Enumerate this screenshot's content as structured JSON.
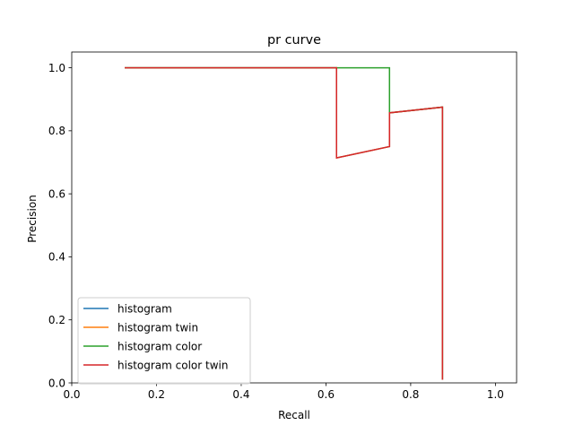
{
  "chart_data": {
    "type": "line",
    "title": "pr curve",
    "xlabel": "Recall",
    "ylabel": "Precision",
    "xlim": [
      0.0,
      1.05
    ],
    "ylim": [
      0.0,
      1.05
    ],
    "x_ticks": [
      "0.0",
      "0.2",
      "0.4",
      "0.6",
      "0.8",
      "1.0"
    ],
    "y_ticks": [
      "0.0",
      "0.2",
      "0.4",
      "0.6",
      "0.8",
      "1.0"
    ],
    "grid": false,
    "legend_position": "lower-left",
    "series": [
      {
        "name": "histogram",
        "color": "#1f77b4",
        "x": [
          0.125,
          0.625,
          0.625,
          0.75,
          0.75,
          0.875,
          0.875
        ],
        "y": [
          1.0,
          1.0,
          0.714,
          0.75,
          0.857,
          0.875,
          0.01
        ]
      },
      {
        "name": "histogram twin",
        "color": "#ff7f0e",
        "x": [
          0.125,
          0.625,
          0.625,
          0.75,
          0.75,
          0.875,
          0.875
        ],
        "y": [
          1.0,
          1.0,
          0.714,
          0.75,
          0.857,
          0.875,
          0.01
        ]
      },
      {
        "name": "histogram color",
        "color": "#2ca02c",
        "x": [
          0.125,
          0.75,
          0.75,
          0.875,
          0.875
        ],
        "y": [
          1.0,
          1.0,
          0.857,
          0.875,
          0.01
        ]
      },
      {
        "name": "histogram color twin",
        "color": "#d62728",
        "x": [
          0.125,
          0.625,
          0.625,
          0.75,
          0.75,
          0.875,
          0.875
        ],
        "y": [
          1.0,
          1.0,
          0.714,
          0.75,
          0.857,
          0.875,
          0.01
        ]
      }
    ]
  }
}
